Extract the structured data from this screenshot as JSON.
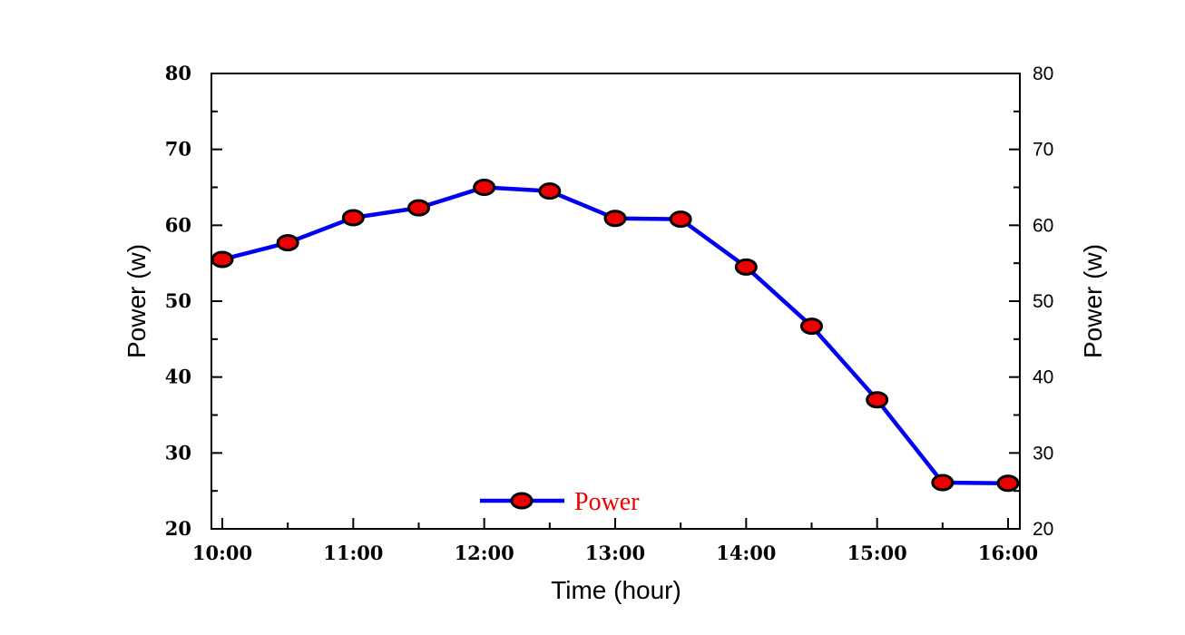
{
  "colors": {
    "line": "#0000ee",
    "marker_fill": "#ee0000",
    "marker_stroke": "#000000",
    "legend_text": "#ee0000"
  },
  "chart_data": {
    "type": "line",
    "title": "",
    "xlabel": "Time (hour)",
    "ylabel": "Power (w)",
    "ylabel_right": "Power (w)",
    "ylim": [
      20,
      80
    ],
    "yticks": [
      "20",
      "30",
      "40",
      "50",
      "60",
      "70",
      "80"
    ],
    "yticks_right": [
      "20",
      "30",
      "40",
      "50",
      "60",
      "70",
      "80"
    ],
    "xticks": [
      "10:00",
      "11:00",
      "12:00",
      "13:00",
      "14:00",
      "15:00",
      "16:00"
    ],
    "legend": {
      "label": "Power",
      "placement": "bottom-center"
    },
    "grid": false,
    "series": [
      {
        "name": "Power",
        "x": [
          10.0,
          10.5,
          11.0,
          11.5,
          12.0,
          12.5,
          13.0,
          13.5,
          14.0,
          14.5,
          15.0,
          15.5,
          16.0
        ],
        "values": [
          55.5,
          57.7,
          61.0,
          62.3,
          65.0,
          64.5,
          60.9,
          60.8,
          54.5,
          46.7,
          37.0,
          26.1,
          26.0
        ]
      }
    ]
  }
}
